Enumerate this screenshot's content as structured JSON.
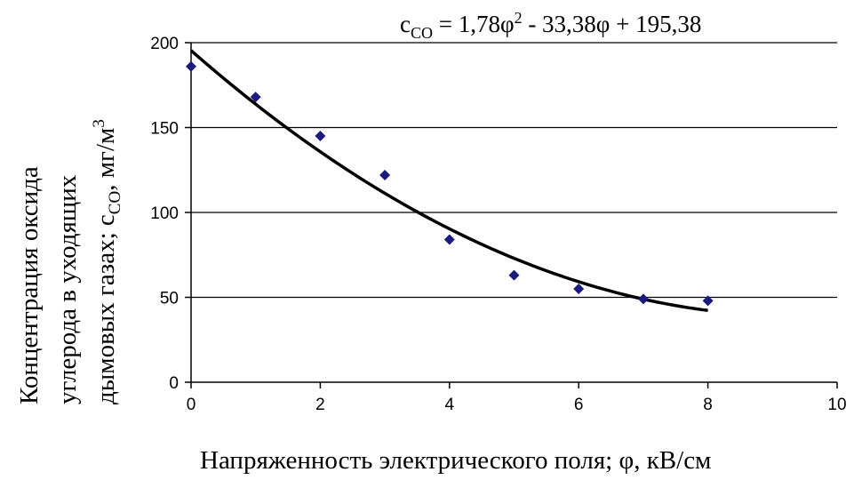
{
  "chart_data": {
    "type": "scatter",
    "equation": {
      "lhs": "c",
      "lhs_sub": "CO",
      "rhs_1": " = 1,78φ",
      "rhs_sup": "2",
      "rhs_2": " - 33,38φ + 195,38"
    },
    "xlabel": "Напряженность электрического поля; φ, кВ/см",
    "ylabel": {
      "line1": "Концентрация оксида",
      "line2": "углерода в уходящих",
      "line3_main": "дымовых газах;  c",
      "line3_sub": "CO",
      "line3_unit": ",  мг/м",
      "line3_sup": "3"
    },
    "xlim": [
      0,
      10
    ],
    "ylim": [
      0,
      200
    ],
    "x_ticks": [
      "0",
      "2",
      "4",
      "6",
      "8",
      "10"
    ],
    "y_ticks": [
      "0",
      "50",
      "100",
      "150",
      "200"
    ],
    "grid": "horizontal",
    "points": {
      "x": [
        0,
        1,
        2,
        3,
        4,
        5,
        6,
        7,
        8
      ],
      "y": [
        186,
        168,
        145,
        122,
        84,
        63,
        55,
        49,
        48
      ],
      "marker": "diamond",
      "color": "#1a1a80"
    },
    "trendline": {
      "type": "polynomial",
      "coefficients": [
        1.78,
        -33.38,
        195.38
      ],
      "x_range": [
        0,
        8
      ],
      "color": "#000000"
    }
  }
}
